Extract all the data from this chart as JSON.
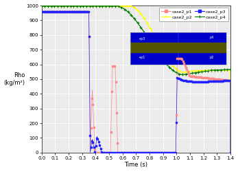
{
  "title": "",
  "xlabel": "Time (s)",
  "ylabel": "Rho\n(kg/m²)",
  "xlim": [
    0.0,
    1.4
  ],
  "ylim": [
    0,
    1000
  ],
  "yticks": [
    0,
    100,
    200,
    300,
    400,
    500,
    600,
    700,
    800,
    900,
    1000
  ],
  "xticks": [
    0.0,
    0.1,
    0.2,
    0.3,
    0.4,
    0.5,
    0.6,
    0.7,
    0.8,
    0.9,
    1.0,
    1.1,
    1.2,
    1.3,
    1.4
  ],
  "color_p1": "#ff8888",
  "color_p2": "#ffff00",
  "color_p3": "#2222ff",
  "color_p4": "#007700",
  "bg_color": "#ebebeb",
  "grid_color": "#ffffff",
  "inset_bg": "#0000cc",
  "inset_overlay": "#555500"
}
